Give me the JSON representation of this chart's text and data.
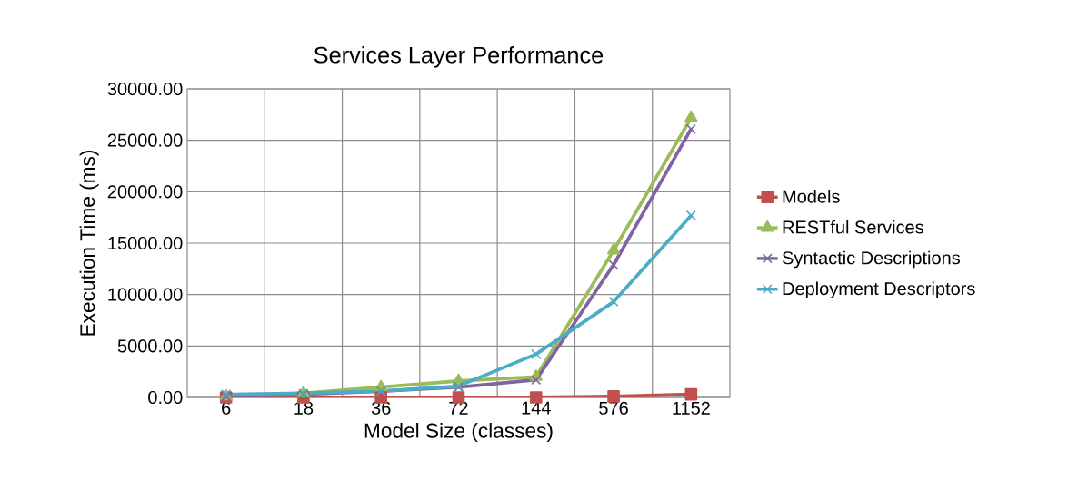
{
  "chart_data": {
    "type": "line",
    "title": "Services Layer Performance",
    "xlabel": "Model Size (classes)",
    "ylabel": "Execution Time (ms)",
    "categories": [
      "6",
      "18",
      "36",
      "72",
      "144",
      "576",
      "1152"
    ],
    "series": [
      {
        "name": "Models",
        "color": "#c0504d",
        "marker": "square",
        "values": [
          0,
          0,
          0,
          0,
          0,
          100,
          300
        ]
      },
      {
        "name": "RESTful Services",
        "color": "#9bbb59",
        "marker": "triangle",
        "values": [
          100,
          400,
          1000,
          1600,
          2000,
          14300,
          27200
        ]
      },
      {
        "name": "Syntactic Descriptions",
        "color": "#8064a2",
        "marker": "cross",
        "values": [
          100,
          300,
          600,
          1000,
          1700,
          12900,
          26100
        ]
      },
      {
        "name": "Deployment Descriptors",
        "color": "#4bacc6",
        "marker": "cross",
        "values": [
          300,
          400,
          600,
          1100,
          4200,
          9300,
          17700
        ]
      }
    ],
    "ylim": [
      0,
      30000
    ],
    "yticks": [
      {
        "value": 0,
        "label": "0.00"
      },
      {
        "value": 5000,
        "label": "5000.00"
      },
      {
        "value": 10000,
        "label": "10000.00"
      },
      {
        "value": 15000,
        "label": "15000.00"
      },
      {
        "value": 20000,
        "label": "20000.00"
      },
      {
        "value": 25000,
        "label": "25000.00"
      },
      {
        "value": 30000,
        "label": "30000.00"
      }
    ],
    "grid": true,
    "legend": "right",
    "line_style": "solid"
  }
}
